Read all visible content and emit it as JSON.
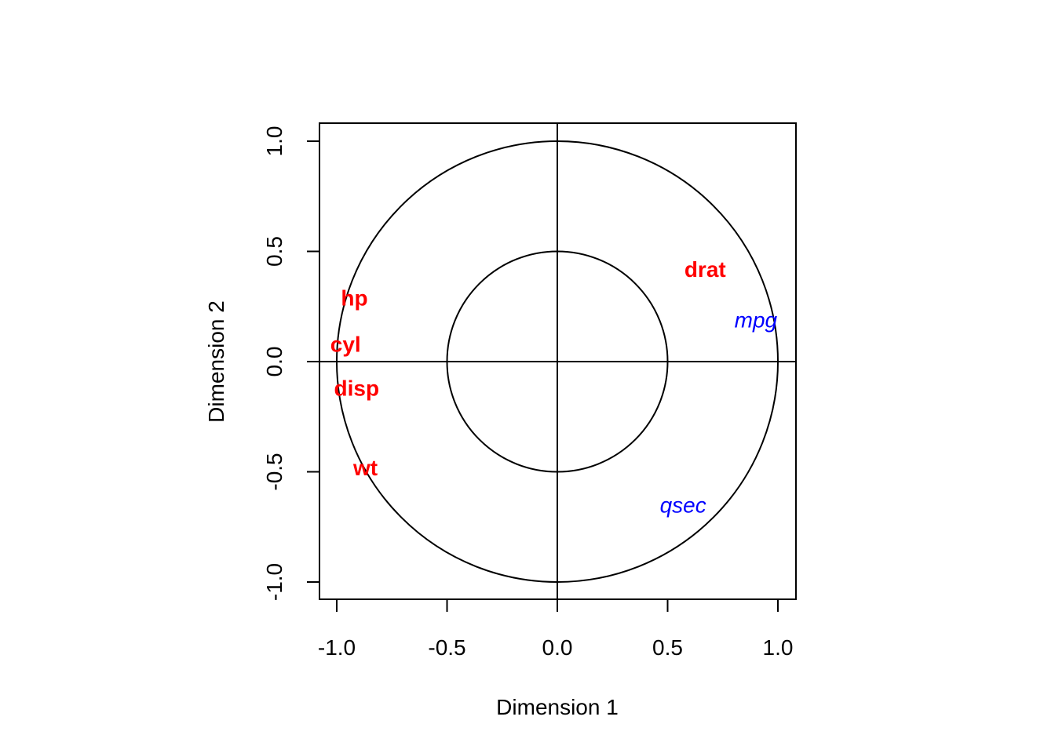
{
  "chart_data": {
    "type": "scatter",
    "xlabel": "Dimension  1",
    "ylabel": "Dimension  2",
    "xlim": [
      -1.08,
      1.08
    ],
    "ylim": [
      -1.08,
      1.08
    ],
    "xticks": [
      -1.0,
      -0.5,
      0.0,
      0.5,
      1.0
    ],
    "yticks": [
      -1.0,
      -0.5,
      0.0,
      0.5,
      1.0
    ],
    "xtick_labels": [
      "-1.0",
      "-0.5",
      "0.0",
      "0.5",
      "1.0"
    ],
    "ytick_labels": [
      "-1.0",
      "-0.5",
      "0.0",
      "0.5",
      "1.0"
    ],
    "circles": [
      1.0,
      0.5
    ],
    "reference_lines": {
      "x": 0,
      "y": 0
    },
    "grid": false,
    "colors": {
      "active": "#ff0000",
      "supplementary": "#0000ff",
      "axes": "#000000"
    },
    "points": [
      {
        "label": "drat",
        "x": 0.67,
        "y": 0.42,
        "group": "active"
      },
      {
        "label": "hp",
        "x": -0.92,
        "y": 0.29,
        "group": "active"
      },
      {
        "label": "cyl",
        "x": -0.96,
        "y": 0.08,
        "group": "active"
      },
      {
        "label": "disp",
        "x": -0.91,
        "y": -0.12,
        "group": "active"
      },
      {
        "label": "wt",
        "x": -0.87,
        "y": -0.48,
        "group": "active"
      },
      {
        "label": "mpg",
        "x": 0.9,
        "y": 0.19,
        "group": "supplementary"
      },
      {
        "label": "qsec",
        "x": 0.57,
        "y": -0.65,
        "group": "supplementary"
      }
    ]
  }
}
